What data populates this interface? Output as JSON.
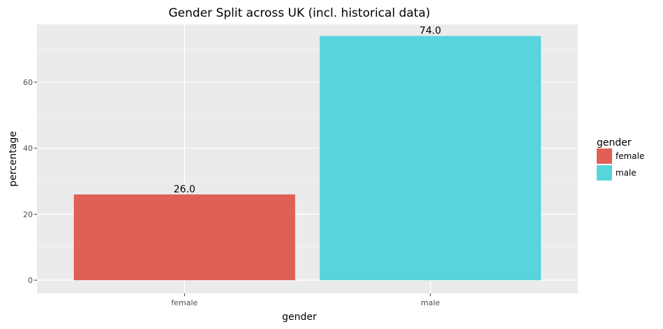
{
  "chart_data": {
    "type": "bar",
    "title": "Gender Split across UK (incl. historical data)",
    "xlabel": "gender",
    "ylabel": "percentage",
    "categories": [
      "female",
      "male"
    ],
    "values": [
      26.0,
      74.0
    ],
    "data_labels": [
      "26.0",
      "74.0"
    ],
    "colors": [
      "#E06055",
      "#58D4DC"
    ],
    "ylim": [
      -4,
      77.5
    ],
    "yticks": [
      0,
      20,
      40,
      60
    ],
    "ytick_labels": [
      "0",
      "20",
      "40",
      "60"
    ],
    "grid": true,
    "legend": {
      "title": "gender",
      "position": "right",
      "items": [
        "female",
        "male"
      ]
    }
  },
  "colors": {
    "panel_background": "#EBEBEB",
    "grid_major": "#FFFFFF",
    "grid_minor": "#F5F5F5"
  }
}
